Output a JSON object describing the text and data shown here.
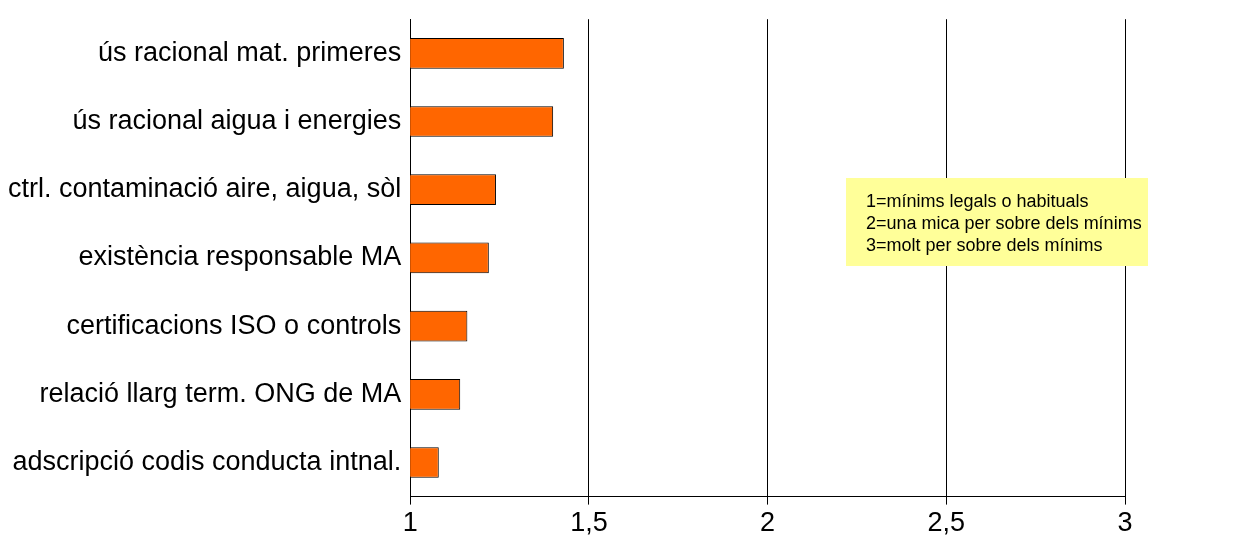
{
  "chart_data": {
    "type": "bar",
    "orientation": "horizontal",
    "categories": [
      "ús racional mat. primeres",
      "ús racional aigua i energies",
      "ctrl. contaminació aire, aigua, sòl",
      "existència responsable MA",
      "certificacions ISO o controls",
      "relació llarg term. ONG de MA",
      "adscripció codis conducta intnal."
    ],
    "values": [
      1.43,
      1.4,
      1.24,
      1.22,
      1.16,
      1.14,
      1.08
    ],
    "color": "#ff6600",
    "xlim": [
      1,
      3
    ],
    "xticks": [
      1,
      {
        "value": 1.5,
        "label": "1,5"
      },
      2,
      {
        "value": 2.5,
        "label": "2,5"
      },
      3
    ],
    "grid": "x",
    "legend": false,
    "annotations": [
      "1=mínims legals o habituals",
      "2=una mica per sobre dels mínims",
      "3=molt per sobre dels mínims"
    ]
  }
}
